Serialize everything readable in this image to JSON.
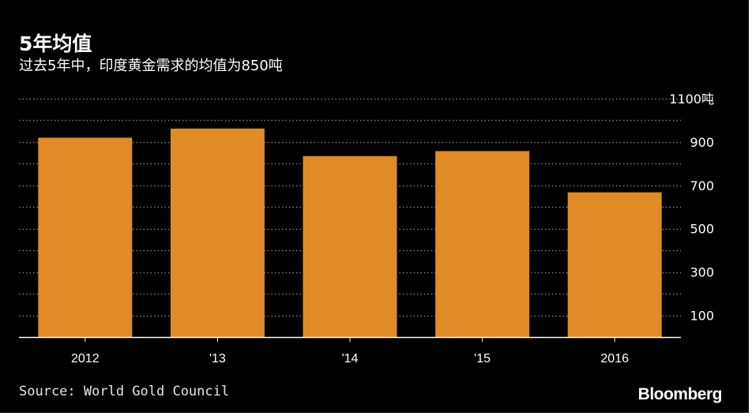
{
  "header": {
    "title": "5年均值",
    "subtitle": "过去5年中，印度黄金需求的均值为850吨"
  },
  "footer": {
    "source": "Source: World Gold Council",
    "brand": "Bloomberg"
  },
  "colors": {
    "background": "#000000",
    "bar": "#E08B28",
    "text": "#FFFFFF",
    "grid": "#7A7A7A"
  },
  "chart_data": {
    "type": "bar",
    "title": "5年均值",
    "subtitle": "过去5年中，印度黄金需求的均值为850吨",
    "categories": [
      "2012",
      "'13",
      "'14",
      "'15",
      "2016"
    ],
    "values": [
      920,
      962,
      835,
      858,
      668
    ],
    "ylim": [
      0,
      1100
    ],
    "ytick_labels": [
      {
        "value": 1100,
        "label": "1100吨"
      },
      {
        "value": 900,
        "label": "900"
      },
      {
        "value": 700,
        "label": "700"
      },
      {
        "value": 500,
        "label": "500"
      },
      {
        "value": 300,
        "label": "300"
      },
      {
        "value": 100,
        "label": "100"
      }
    ],
    "grid_values": [
      100,
      200,
      300,
      400,
      500,
      600,
      700,
      800,
      900,
      1000,
      1100
    ],
    "xlabel": "",
    "ylabel": "",
    "grid": true,
    "axis_side": "right",
    "source": "Source: World Gold Council"
  }
}
